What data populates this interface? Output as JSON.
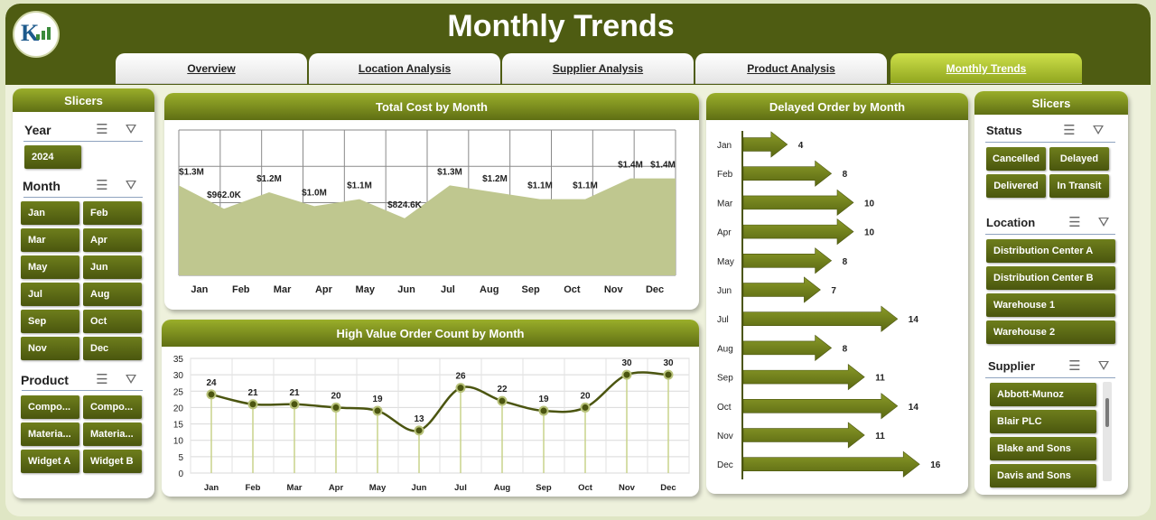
{
  "app": {
    "title": "Monthly Trends",
    "logo_text": "K"
  },
  "tabs": [
    {
      "label": "Overview",
      "active": false
    },
    {
      "label": "Location Analysis",
      "active": false
    },
    {
      "label": "Supplier Analysis",
      "active": false
    },
    {
      "label": "Product Analysis",
      "active": false
    },
    {
      "label": "Monthly Trends",
      "active": true
    }
  ],
  "left_slicers": {
    "title": "Slicers",
    "year": {
      "label": "Year",
      "items": [
        "2024"
      ]
    },
    "month": {
      "label": "Month",
      "items": [
        "Jan",
        "Feb",
        "Mar",
        "Apr",
        "May",
        "Jun",
        "Jul",
        "Aug",
        "Sep",
        "Oct",
        "Nov",
        "Dec"
      ]
    },
    "product": {
      "label": "Product",
      "items": [
        "Compo...",
        "Compo...",
        "Materia...",
        "Materia...",
        "Widget A",
        "Widget B"
      ]
    }
  },
  "right_slicers": {
    "title": "Slicers",
    "status": {
      "label": "Status",
      "items": [
        "Cancelled",
        "Delayed",
        "Delivered",
        "In Transit"
      ]
    },
    "location": {
      "label": "Location",
      "items": [
        "Distribution Center A",
        "Distribution Center B",
        "Warehouse 1",
        "Warehouse 2"
      ]
    },
    "supplier": {
      "label": "Supplier",
      "items": [
        "Abbott-Munoz",
        "Blair PLC",
        "Blake and Sons",
        "Davis and Sons"
      ]
    }
  },
  "colors": {
    "header": "#4e5c12",
    "accent": "#7a8c1c",
    "area_fill": "#bfc78f",
    "arrow": "#6f7f19"
  },
  "chart_data": [
    {
      "id": "total_cost",
      "type": "area",
      "title": "Total Cost by Month",
      "categories": [
        "Jan",
        "Feb",
        "Mar",
        "Apr",
        "May",
        "Jun",
        "Jul",
        "Aug",
        "Sep",
        "Oct",
        "Nov",
        "Dec"
      ],
      "values": [
        1300000,
        962000,
        1200000,
        1000000,
        1100000,
        824600,
        1300000,
        1200000,
        1100000,
        1100000,
        1400000,
        1400000
      ],
      "labels": [
        "$1.3M",
        "$962.0K",
        "$1.2M",
        "$1.0M",
        "$1.1M",
        "$824.6K",
        "$1.3M",
        "$1.2M",
        "$1.1M",
        "$1.1M",
        "$1.4M",
        "$1.4M"
      ],
      "grid": true
    },
    {
      "id": "high_value",
      "type": "line",
      "title": "High Value Order Count by Month",
      "categories": [
        "Jan",
        "Feb",
        "Mar",
        "Apr",
        "May",
        "Jun",
        "Jul",
        "Aug",
        "Sep",
        "Oct",
        "Nov",
        "Dec"
      ],
      "values": [
        24,
        21,
        21,
        20,
        19,
        13,
        26,
        22,
        19,
        20,
        30,
        30
      ],
      "ylim": [
        0,
        35
      ],
      "yticks": [
        0,
        5,
        10,
        15,
        20,
        25,
        30,
        35
      ],
      "grid": true
    },
    {
      "id": "delayed",
      "type": "bar",
      "title": "Delayed Order by Month",
      "categories": [
        "Jan",
        "Feb",
        "Mar",
        "Apr",
        "May",
        "Jun",
        "Jul",
        "Aug",
        "Sep",
        "Oct",
        "Nov",
        "Dec"
      ],
      "values": [
        4,
        8,
        10,
        10,
        8,
        7,
        14,
        8,
        11,
        14,
        11,
        16
      ]
    }
  ]
}
